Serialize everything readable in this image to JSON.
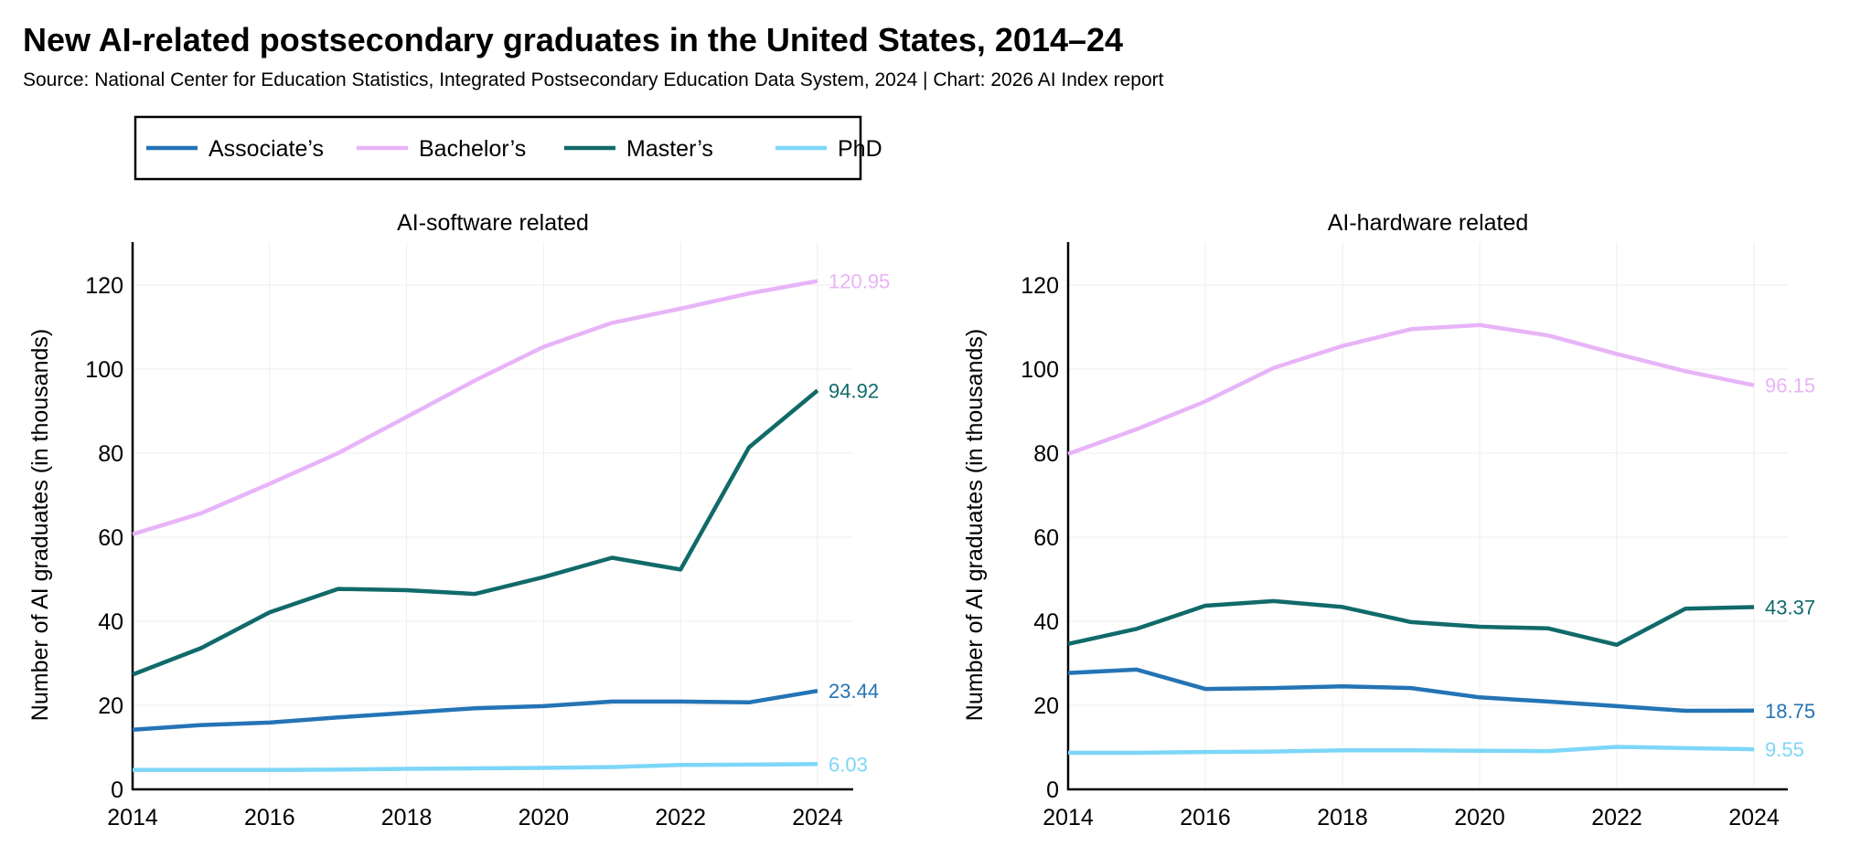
{
  "chart_data": {
    "type": "line",
    "title": "New AI-related postsecondary graduates in the United States, 2014–24",
    "subtitle": "Source: National Center for Education Statistics, Integrated Postsecondary Education Data System, 2024 | Chart: 2026 AI Index report",
    "legend": {
      "placement": "top-left",
      "entries": [
        {
          "name": "Associate’s",
          "color": "#2474b5"
        },
        {
          "name": "Bachelor’s",
          "color": "#e8b4f8"
        },
        {
          "name": "Master’s",
          "color": "#116a6a"
        },
        {
          "name": "PhD",
          "color": "#7dd6f7"
        }
      ]
    },
    "x": [
      2014,
      2015,
      2016,
      2017,
      2018,
      2019,
      2020,
      2021,
      2022,
      2023,
      2024
    ],
    "xticks": [
      "2014",
      "2016",
      "2018",
      "2020",
      "2022",
      "2024"
    ],
    "yticks": [
      "0",
      "20",
      "40",
      "60",
      "80",
      "100",
      "120"
    ],
    "ylim": [
      0,
      130
    ],
    "xlim": [
      2014,
      2024.5
    ],
    "grid": true,
    "ylabel": "Number of AI graduates (in thousands)",
    "panels": [
      {
        "title": "AI-software related",
        "series": [
          {
            "name": "Bachelor’s",
            "values": [
              60.7,
              65.7,
              72.7,
              80.0,
              88.6,
              97.3,
              105.3,
              111.0,
              114.4,
              118.0,
              120.95
            ],
            "end_label": "120.95"
          },
          {
            "name": "Master’s",
            "values": [
              27.3,
              33.6,
              42.1,
              47.7,
              47.4,
              46.5,
              50.5,
              55.1,
              52.3,
              81.4,
              94.92
            ],
            "end_label": "94.92"
          },
          {
            "name": "Associate’s",
            "values": [
              14.2,
              15.3,
              15.9,
              17.1,
              18.2,
              19.3,
              19.8,
              20.9,
              20.9,
              20.7,
              23.44
            ],
            "end_label": "23.44"
          },
          {
            "name": "PhD",
            "values": [
              4.6,
              4.6,
              4.6,
              4.7,
              4.9,
              5.0,
              5.1,
              5.3,
              5.8,
              5.9,
              6.03
            ],
            "end_label": "6.03"
          }
        ]
      },
      {
        "title": "AI-hardware related",
        "series": [
          {
            "name": "Bachelor’s",
            "values": [
              79.8,
              85.7,
              92.3,
              100.3,
              105.5,
              109.5,
              110.5,
              108.0,
              103.6,
              99.5,
              96.15
            ],
            "end_label": "96.15"
          },
          {
            "name": "Master’s",
            "values": [
              34.6,
              38.2,
              43.7,
              44.8,
              43.4,
              39.8,
              38.7,
              38.3,
              34.4,
              43.0,
              43.37
            ],
            "end_label": "43.37"
          },
          {
            "name": "Associate’s",
            "values": [
              27.7,
              28.5,
              23.9,
              24.1,
              24.5,
              24.1,
              21.9,
              20.9,
              19.8,
              18.7,
              18.75
            ],
            "end_label": "18.75"
          },
          {
            "name": "PhD",
            "values": [
              8.7,
              8.7,
              8.9,
              9.0,
              9.3,
              9.3,
              9.2,
              9.1,
              10.1,
              9.8,
              9.55
            ],
            "end_label": "9.55"
          }
        ]
      }
    ]
  }
}
